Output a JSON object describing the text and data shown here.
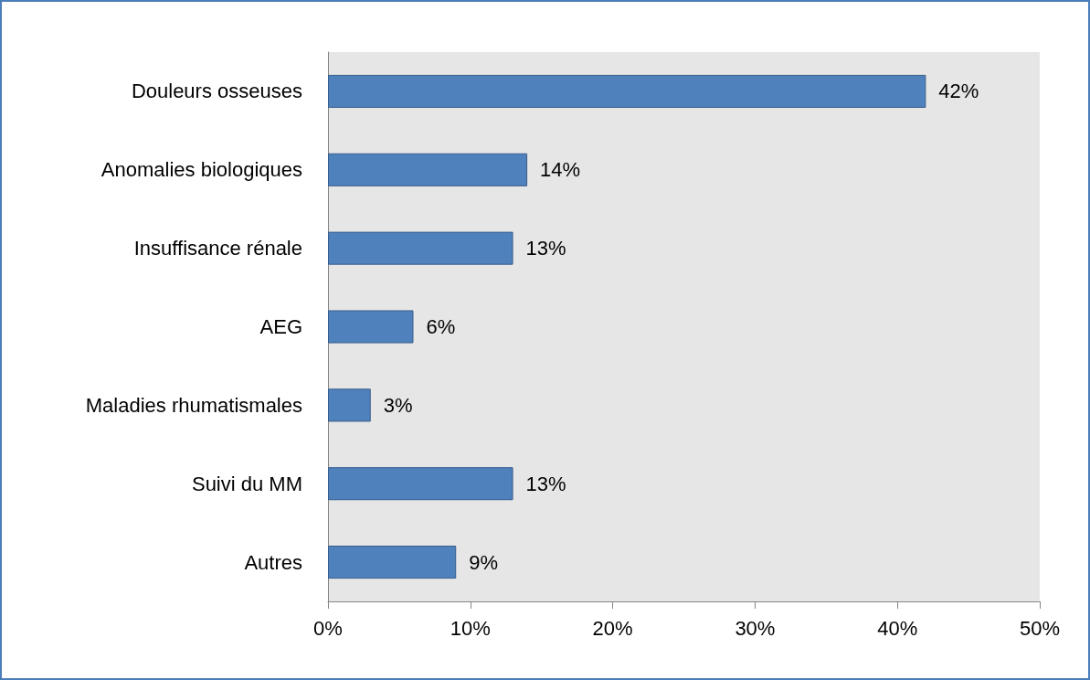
{
  "chart_data": {
    "type": "bar",
    "orientation": "horizontal",
    "categories": [
      "Douleurs osseuses",
      "Anomalies biologiques",
      "Insuffisance rénale",
      "AEG",
      "Maladies rhumatismales",
      "Suivi du MM",
      "Autres"
    ],
    "values": [
      42,
      14,
      13,
      6,
      3,
      13,
      9
    ],
    "value_labels": [
      "42%",
      "14%",
      "13%",
      "6%",
      "3%",
      "13%",
      "9%"
    ],
    "color": "#4f81bd",
    "xlim": [
      0,
      50
    ],
    "xticks": [
      {
        "value": 0,
        "label": "0%"
      },
      {
        "value": 10,
        "label": "10%"
      },
      {
        "value": 20,
        "label": "20%"
      },
      {
        "value": 30,
        "label": "30%"
      },
      {
        "value": 40,
        "label": "40%"
      },
      {
        "value": 50,
        "label": "50%"
      }
    ],
    "grid": false
  }
}
